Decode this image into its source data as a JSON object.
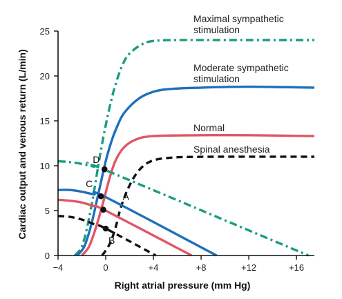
{
  "chart_data": {
    "type": "line",
    "xlabel": "Right atrial pressure (mm Hg)",
    "ylabel": "Cardiac output and venous return (L/min)",
    "xlim": [
      -4,
      17.5
    ],
    "ylim": [
      0,
      25
    ],
    "x_ticks": [
      -4,
      0,
      4,
      8,
      12,
      16
    ],
    "x_tick_labels": [
      "−4",
      "0",
      "+4",
      "+8",
      "+12",
      "+16"
    ],
    "y_ticks": [
      0,
      5,
      10,
      15,
      20,
      25
    ],
    "y_tick_labels": [
      "0",
      "5",
      "10",
      "15",
      "20",
      "25"
    ],
    "series": [
      {
        "name": "Maximal sympathetic stimulation",
        "label_lines": [
          "Maximal sympathetic",
          "stimulation"
        ],
        "kind": "cardiac_output",
        "color": "#1a9c82",
        "dash": "dashdot",
        "points": [
          [
            -2.6,
            0
          ],
          [
            -2.0,
            1.0
          ],
          [
            -1.5,
            3.5
          ],
          [
            -1.0,
            7.0
          ],
          [
            -0.5,
            11.0
          ],
          [
            0,
            14.5
          ],
          [
            0.5,
            17.5
          ],
          [
            1.0,
            19.8
          ],
          [
            1.5,
            21.5
          ],
          [
            2.0,
            22.5
          ],
          [
            3.0,
            23.5
          ],
          [
            4.0,
            23.9
          ],
          [
            6.0,
            24.0
          ],
          [
            10.0,
            24.0
          ],
          [
            17.5,
            24.0
          ]
        ]
      },
      {
        "name": "Moderate sympathetic stimulation",
        "label_lines": [
          "Moderate sympathetic",
          "stimulation"
        ],
        "kind": "cardiac_output",
        "color": "#1f6fbd",
        "dash": "solid",
        "points": [
          [
            -2.4,
            0
          ],
          [
            -1.8,
            1.0
          ],
          [
            -1.2,
            3.5
          ],
          [
            -0.6,
            7.0
          ],
          [
            0,
            10.5
          ],
          [
            0.5,
            12.8
          ],
          [
            1.0,
            14.5
          ],
          [
            1.5,
            15.8
          ],
          [
            2.5,
            17.2
          ],
          [
            3.5,
            18.0
          ],
          [
            5.0,
            18.5
          ],
          [
            8.0,
            18.7
          ],
          [
            12.0,
            18.8
          ],
          [
            17.5,
            18.7
          ]
        ]
      },
      {
        "name": "Normal",
        "label_lines": [
          "Normal"
        ],
        "kind": "cardiac_output",
        "color": "#e15665",
        "dash": "solid",
        "points": [
          [
            -2.0,
            0
          ],
          [
            -1.4,
            1.0
          ],
          [
            -0.8,
            3.2
          ],
          [
            -0.2,
            6.0
          ],
          [
            0.3,
            8.5
          ],
          [
            0.8,
            10.5
          ],
          [
            1.5,
            12.0
          ],
          [
            2.5,
            12.9
          ],
          [
            4.0,
            13.3
          ],
          [
            8.0,
            13.4
          ],
          [
            12.0,
            13.4
          ],
          [
            17.5,
            13.3
          ]
        ]
      },
      {
        "name": "Spinal anesthesia",
        "label_lines": [
          "Spinal anesthesia"
        ],
        "kind": "cardiac_output",
        "color": "#111111",
        "dash": "dashed",
        "points": [
          [
            -0.3,
            0
          ],
          [
            0.3,
            1.2
          ],
          [
            0.8,
            3.0
          ],
          [
            1.3,
            5.5
          ],
          [
            2.0,
            7.8
          ],
          [
            2.8,
            9.5
          ],
          [
            3.8,
            10.5
          ],
          [
            5.5,
            10.9
          ],
          [
            9.0,
            11.0
          ],
          [
            17.5,
            11.0
          ]
        ]
      },
      {
        "name": "venous-return-max",
        "kind": "venous_return",
        "color": "#1a9c82",
        "dash": "dashdot",
        "points": [
          [
            -4,
            10.5
          ],
          [
            -3,
            10.4
          ],
          [
            -2,
            10.2
          ],
          [
            -1,
            9.9
          ],
          [
            0,
            9.5
          ],
          [
            17,
            0
          ]
        ]
      },
      {
        "name": "venous-return-moderate",
        "kind": "venous_return",
        "color": "#1f6fbd",
        "dash": "solid",
        "points": [
          [
            -4,
            7.3
          ],
          [
            -3,
            7.3
          ],
          [
            -2,
            7.1
          ],
          [
            -1,
            6.8
          ],
          [
            0,
            6.5
          ],
          [
            9.3,
            0
          ]
        ]
      },
      {
        "name": "venous-return-normal",
        "kind": "venous_return",
        "color": "#e15665",
        "dash": "solid",
        "points": [
          [
            -4,
            6.2
          ],
          [
            -3,
            6.1
          ],
          [
            -2,
            5.9
          ],
          [
            -1,
            5.5
          ],
          [
            0,
            5.0
          ],
          [
            7.2,
            0
          ]
        ]
      },
      {
        "name": "venous-return-spinal",
        "kind": "venous_return",
        "color": "#111111",
        "dash": "dashed",
        "points": [
          [
            -4,
            4.4
          ],
          [
            -3,
            4.3
          ],
          [
            -2,
            4.0
          ],
          [
            -1,
            3.5
          ],
          [
            0,
            3.0
          ],
          [
            4.2,
            0
          ]
        ]
      }
    ],
    "points": [
      {
        "label": "D",
        "x": -0.1,
        "y": 9.6
      },
      {
        "label": "C",
        "x": -0.4,
        "y": 6.6
      },
      {
        "label": "A",
        "x": -0.2,
        "y": 5.1
      },
      {
        "label": "B",
        "x": 0.0,
        "y": 3.0
      }
    ]
  }
}
